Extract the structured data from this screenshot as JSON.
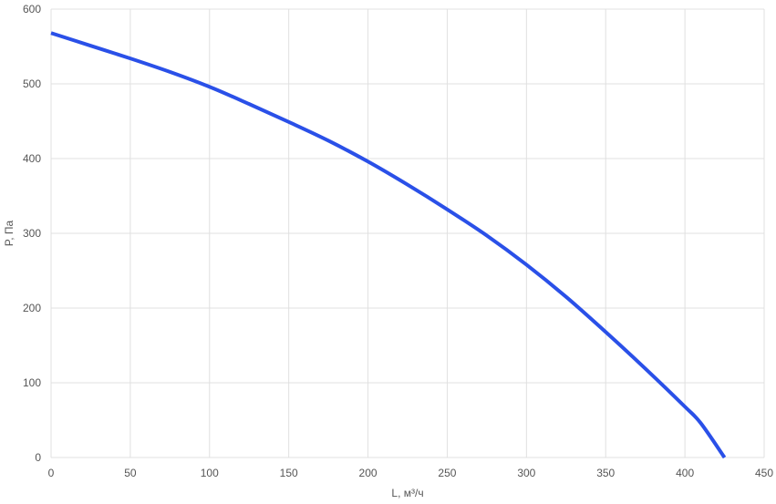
{
  "chart_data": {
    "type": "line",
    "title": "",
    "xlabel": "L, м³/ч",
    "ylabel": "P, Па",
    "xlim": [
      0,
      450
    ],
    "ylim": [
      0,
      600
    ],
    "x_ticks": [
      0,
      50,
      100,
      150,
      200,
      250,
      300,
      350,
      400,
      450
    ],
    "y_ticks": [
      0,
      100,
      200,
      300,
      400,
      500,
      600
    ],
    "x_tick_labels": [
      "0",
      "50",
      "100",
      "150",
      "200",
      "250",
      "300",
      "350",
      "400",
      "450"
    ],
    "y_tick_labels": [
      "0",
      "100",
      "200",
      "300",
      "400",
      "500",
      "600"
    ],
    "grid": true,
    "colors": {
      "line": "#2a50e8",
      "grid": "#e0e0e0",
      "tick_text": "#555555"
    },
    "series": [
      {
        "x": [
          0,
          25,
          50,
          75,
          100,
          125,
          150,
          175,
          200,
          225,
          250,
          275,
          300,
          325,
          350,
          375,
          400,
          410,
          425
        ],
        "y": [
          568,
          551,
          534,
          516,
          496,
          473,
          449,
          424,
          396,
          365,
          332,
          297,
          258,
          215,
          168,
          119,
          68,
          46,
          0
        ]
      }
    ]
  }
}
